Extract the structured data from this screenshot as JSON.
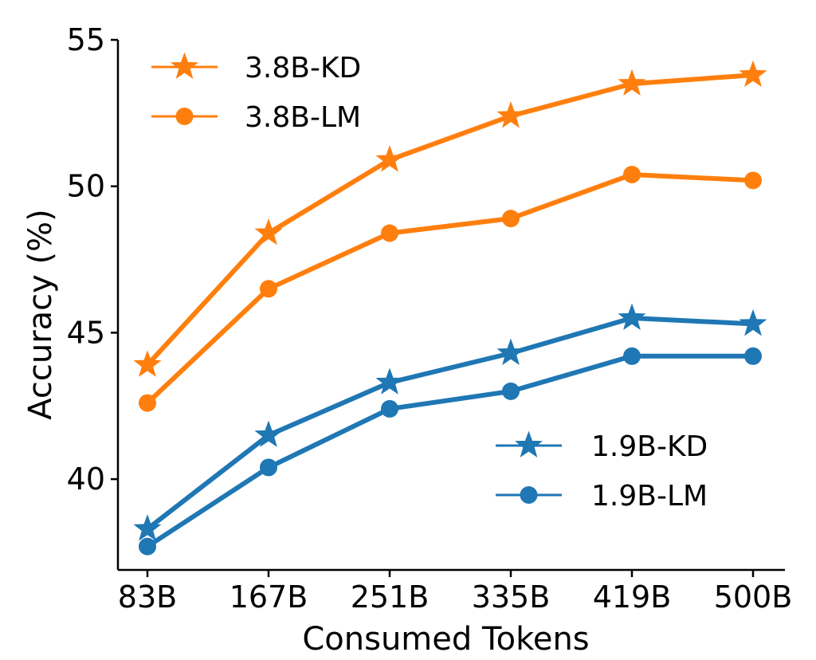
{
  "chart_data": {
    "type": "line",
    "title": "",
    "xlabel": "Consumed Tokens",
    "ylabel": "Accuracy (%)",
    "categories": [
      "83B",
      "167B",
      "251B",
      "335B",
      "419B",
      "500B"
    ],
    "ylim": [
      36.9,
      55
    ],
    "yticks": [
      40,
      45,
      50,
      55
    ],
    "grid": false,
    "series": [
      {
        "name": "3.8B-KD",
        "color": "#ff7f0e",
        "marker": "star",
        "values": [
          43.9,
          48.4,
          50.9,
          52.4,
          53.5,
          53.8
        ]
      },
      {
        "name": "3.8B-LM",
        "color": "#ff7f0e",
        "marker": "circle",
        "values": [
          42.6,
          46.5,
          48.4,
          48.9,
          50.4,
          50.2
        ]
      },
      {
        "name": "1.9B-KD",
        "color": "#1f77b4",
        "marker": "star",
        "values": [
          38.3,
          41.5,
          43.3,
          44.3,
          45.5,
          45.3
        ]
      },
      {
        "name": "1.9B-LM",
        "color": "#1f77b4",
        "marker": "circle",
        "values": [
          37.7,
          40.4,
          42.4,
          43.0,
          44.2,
          44.2
        ]
      }
    ],
    "legends": [
      {
        "placement": "upper-left",
        "entries": [
          "3.8B-KD",
          "3.8B-LM"
        ]
      },
      {
        "placement": "lower-right",
        "entries": [
          "1.9B-KD",
          "1.9B-LM"
        ]
      }
    ]
  }
}
